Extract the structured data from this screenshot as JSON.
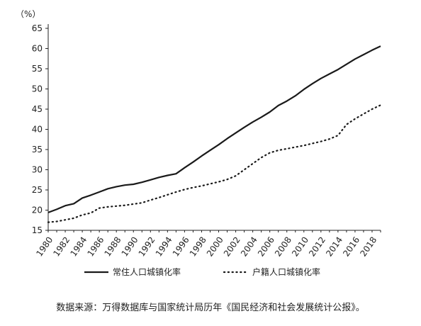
{
  "chart_data": {
    "type": "line",
    "unit_label": "（%）",
    "x": [
      1980,
      1981,
      1982,
      1983,
      1984,
      1985,
      1986,
      1987,
      1988,
      1989,
      1990,
      1991,
      1992,
      1993,
      1994,
      1995,
      1996,
      1997,
      1998,
      1999,
      2000,
      2001,
      2002,
      2003,
      2004,
      2005,
      2006,
      2007,
      2008,
      2009,
      2010,
      2011,
      2012,
      2013,
      2014,
      2015,
      2016,
      2017,
      2018,
      2019
    ],
    "x_tick_labels": [
      "1980",
      "1982",
      "1984",
      "1986",
      "1988",
      "1990",
      "1992",
      "1994",
      "1996",
      "1998",
      "2000",
      "2002",
      "2004",
      "2006",
      "2008",
      "2010",
      "2012",
      "2014",
      "2016",
      "2018"
    ],
    "y_ticks": [
      15,
      20,
      25,
      30,
      35,
      40,
      45,
      50,
      55,
      60,
      65
    ],
    "ylim": [
      15,
      65
    ],
    "xlim": [
      1980,
      2019
    ],
    "grid": false,
    "legend_position": "bottom",
    "series": [
      {
        "name": "常住人口城镇化率",
        "style": "solid",
        "color": "#1a1a1a",
        "values": [
          19.4,
          20.2,
          21.1,
          21.6,
          23.0,
          23.7,
          24.5,
          25.3,
          25.8,
          26.2,
          26.4,
          26.9,
          27.5,
          28.1,
          28.6,
          29.0,
          30.5,
          31.9,
          33.4,
          34.8,
          36.2,
          37.7,
          39.1,
          40.5,
          41.8,
          43.0,
          44.3,
          45.9,
          47.0,
          48.3,
          49.9,
          51.3,
          52.6,
          53.7,
          54.8,
          56.1,
          57.4,
          58.5,
          59.6,
          60.6
        ]
      },
      {
        "name": "户籍人口城镇化率",
        "style": "dotted",
        "color": "#1a1a1a",
        "values": [
          17.0,
          17.2,
          17.6,
          18.0,
          18.8,
          19.3,
          20.5,
          20.8,
          21.0,
          21.2,
          21.5,
          21.8,
          22.5,
          23.1,
          23.8,
          24.5,
          25.1,
          25.6,
          26.0,
          26.5,
          27.0,
          27.6,
          28.5,
          30.0,
          31.5,
          33.0,
          34.2,
          34.8,
          35.2,
          35.6,
          36.0,
          36.5,
          37.0,
          37.6,
          38.5,
          41.2,
          42.6,
          43.8,
          45.0,
          46.0
        ]
      }
    ]
  },
  "source_note": "数据来源：万得数据库与国家统计局历年《国民经济和社会发展统计公报》。"
}
